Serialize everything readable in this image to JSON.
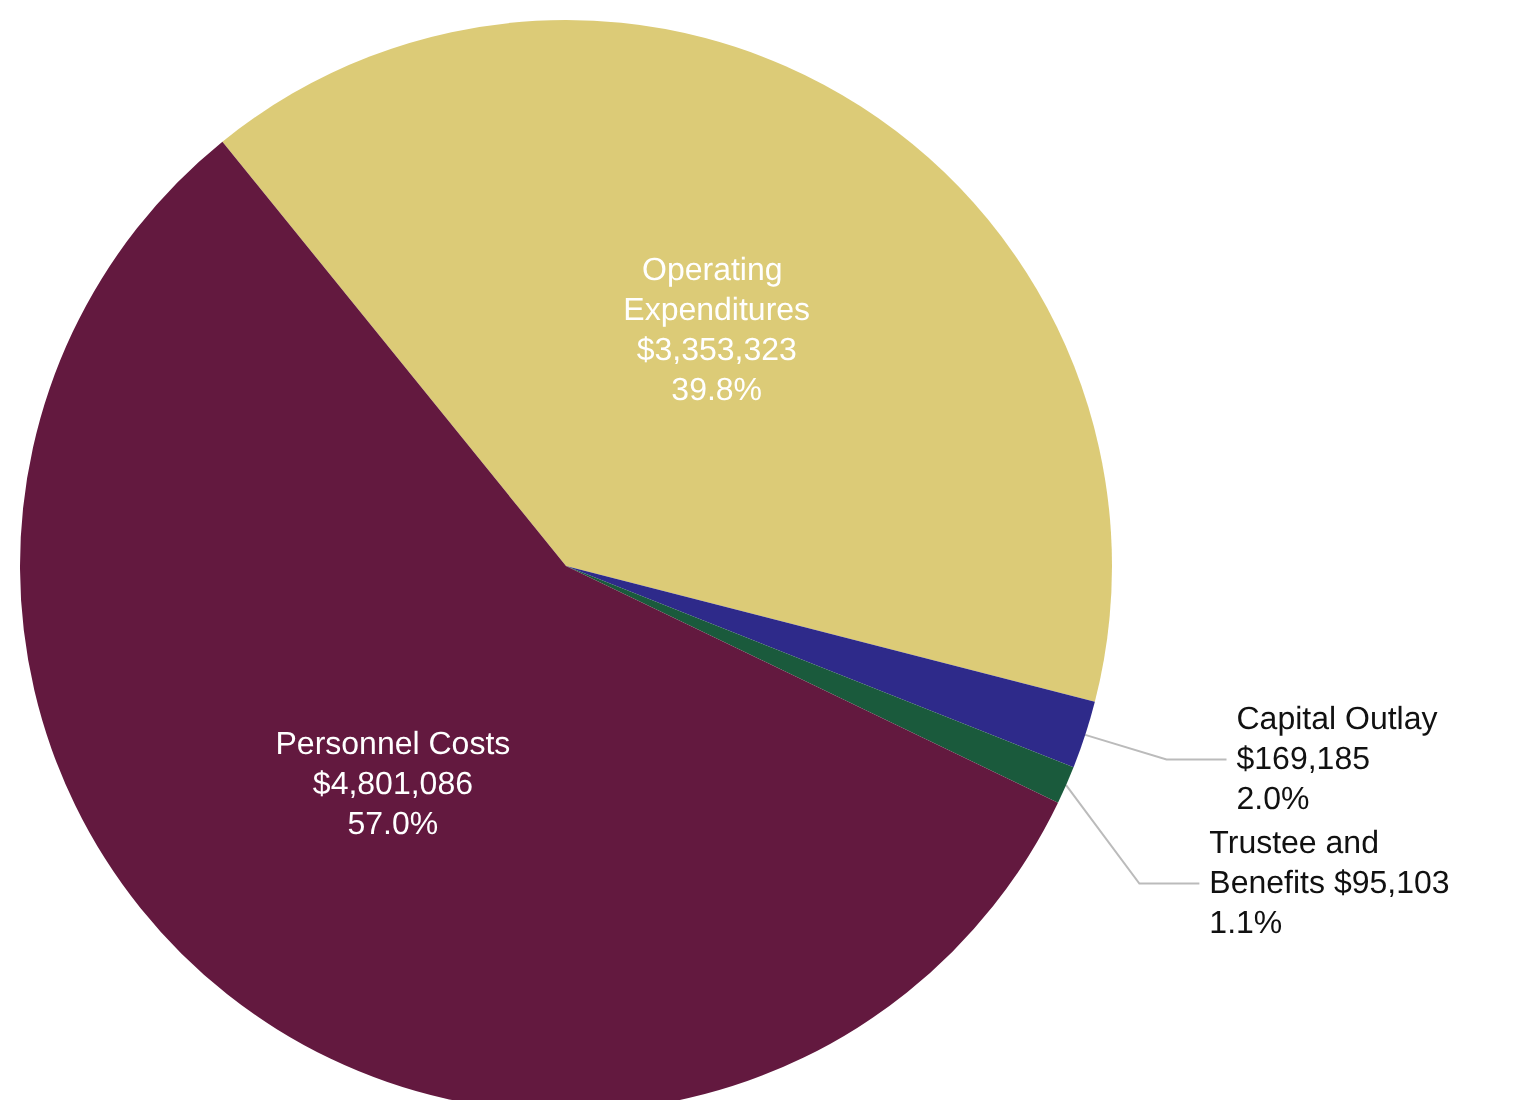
{
  "chart_data": {
    "type": "pie",
    "categories": [
      "Operating Expenditures",
      "Capital Outlay",
      "Trustee and Benefits",
      "Personnel Costs"
    ],
    "values": [
      3353323,
      169185,
      95103,
      4801086
    ],
    "value_labels": [
      "$3,353,323\n39.8%",
      "$169,185\n2.0%",
      "$95,103\n1.1%",
      "$4,801,086\n57.0%"
    ],
    "colors": [
      "#dccb77",
      "#2e2a8a",
      "#1a5a3c",
      "#63193f"
    ],
    "legend": false
  }
}
